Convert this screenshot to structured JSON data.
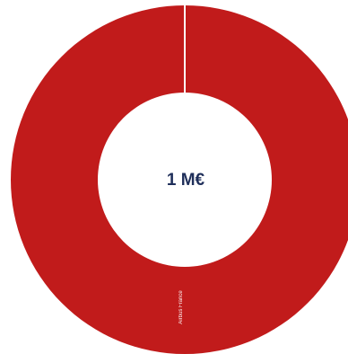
{
  "chart_data": {
    "type": "pie",
    "categories": [
      "Airbus France"
    ],
    "values": [
      1
    ],
    "total_label": "1 M€",
    "colors": {
      "slice": "#c11b1b",
      "divider": "#ffffff",
      "hole": "#ffffff",
      "center_text": "#1f2f5a"
    }
  }
}
